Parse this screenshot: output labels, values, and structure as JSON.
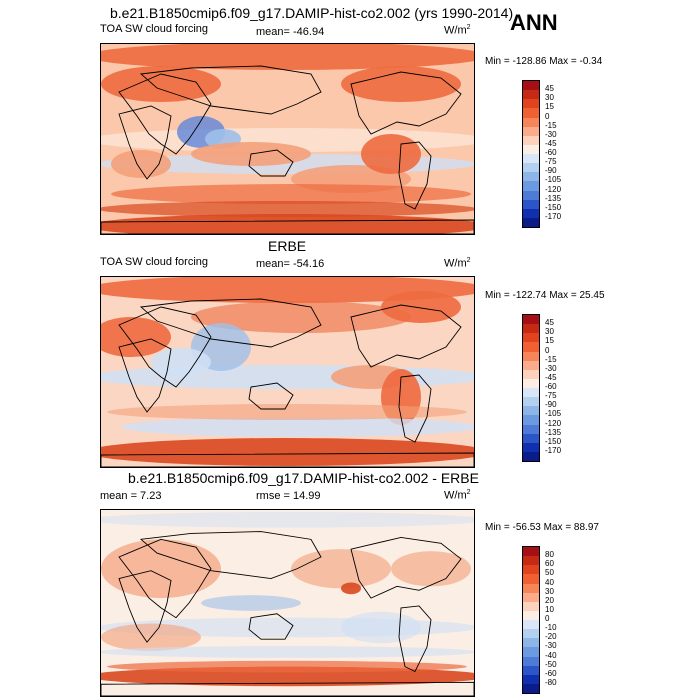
{
  "header": {
    "main_title": "b.e21.B1850cmip6.f09_g17.DAMIP-hist-co2.002 (yrs 1990-2014)",
    "season": "ANN"
  },
  "panels": [
    {
      "id": "model",
      "heading": "",
      "left_label": "TOA SW cloud forcing",
      "center_label": "mean= -46.94",
      "units": "W/m",
      "units_sup": "2",
      "minmax": "Min = -128.86 Max =  -0.34"
    },
    {
      "id": "obs",
      "heading": "ERBE",
      "left_label": "TOA SW cloud forcing",
      "center_label": "mean= -54.16",
      "units": "W/m",
      "units_sup": "2",
      "minmax": "Min = -122.74 Max =  25.45"
    },
    {
      "id": "diff",
      "heading": "b.e21.B1850cmip6.f09_g17.DAMIP-hist-co2.002 - ERBE",
      "left_label": "mean =  7.23",
      "center_label": "rmse =  14.99",
      "units": "W/m",
      "units_sup": "2",
      "minmax": "Min = -56.53 Max =  88.97"
    }
  ],
  "colorbars": {
    "main_levels": [
      "45",
      "30",
      "15",
      "0",
      "-15",
      "-30",
      "-45",
      "-60",
      "-75",
      "-90",
      "-105",
      "-120",
      "-135",
      "-150",
      "-170"
    ],
    "main_colors": [
      "#a50f15",
      "#c62a15",
      "#e0431d",
      "#f06032",
      "#f7855a",
      "#fbab8a",
      "#fcd2bd",
      "#fbeee4",
      "#d8e6f7",
      "#b3d0f0",
      "#8db5e8",
      "#6c9ae0",
      "#4d7bd6",
      "#2b56c8",
      "#1030b0",
      "#0a1c8a"
    ],
    "diff_levels": [
      "80",
      "60",
      "50",
      "40",
      "30",
      "20",
      "10",
      "0",
      "-10",
      "-20",
      "-30",
      "-40",
      "-50",
      "-60",
      "-80"
    ],
    "diff_colors": [
      "#a50f15",
      "#c62a15",
      "#e0431d",
      "#f06032",
      "#f7855a",
      "#fbab8a",
      "#fcd2bd",
      "#fbeee4",
      "#d8e6f7",
      "#b3d0f0",
      "#8db5e8",
      "#6c9ae0",
      "#4d7bd6",
      "#2b56c8",
      "#1030b0",
      "#0a1c8a"
    ]
  }
}
